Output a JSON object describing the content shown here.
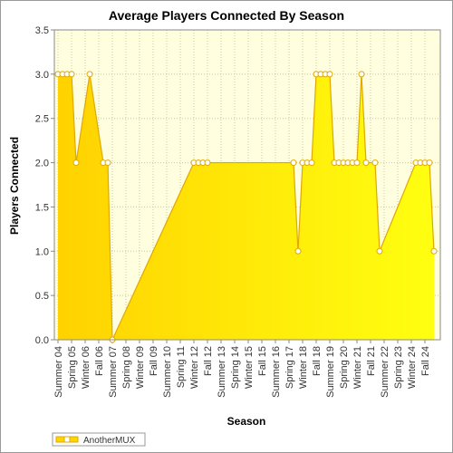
{
  "chart_data": {
    "type": "area",
    "title": "Average Players Connected By Season",
    "x_label": "Season",
    "y_label": "Players Connected",
    "x": [
      0,
      1,
      2,
      3,
      4,
      7,
      10,
      11,
      12,
      30,
      31,
      32,
      33,
      52,
      53,
      54,
      55,
      56,
      57,
      58,
      59,
      60,
      61,
      62,
      63,
      64,
      65,
      66,
      67,
      68,
      70,
      71,
      79,
      80,
      81,
      82,
      83
    ],
    "series": [
      {
        "name": "AnotherMUX",
        "color": "#ffd700",
        "line_color": "#e0a800",
        "values": [
          3,
          3,
          3,
          3,
          2,
          3,
          2,
          2,
          0,
          2,
          2,
          2,
          2,
          2,
          1,
          2,
          2,
          2,
          3,
          3,
          3,
          3,
          2,
          2,
          2,
          2,
          2,
          2,
          3,
          2,
          2,
          1,
          2,
          2,
          2,
          2,
          1
        ]
      }
    ],
    "xlim": [
      -0.8,
      84.4
    ],
    "xticks": [
      {
        "value": 0,
        "label": "Summer 04"
      },
      {
        "value": 3,
        "label": "Spring 05"
      },
      {
        "value": 6,
        "label": "Winter 06"
      },
      {
        "value": 9,
        "label": "Fall 06"
      },
      {
        "value": 12,
        "label": "Summer 07"
      },
      {
        "value": 15,
        "label": "Spring 08"
      },
      {
        "value": 18,
        "label": "Winter 09"
      },
      {
        "value": 21,
        "label": "Fall 09"
      },
      {
        "value": 24,
        "label": "Summer 10"
      },
      {
        "value": 27,
        "label": "Spring 11"
      },
      {
        "value": 30,
        "label": "Winter 12"
      },
      {
        "value": 33,
        "label": "Fall 12"
      },
      {
        "value": 36,
        "label": "Summer 13"
      },
      {
        "value": 39,
        "label": "Spring 14"
      },
      {
        "value": 42,
        "label": "Winter 15"
      },
      {
        "value": 45,
        "label": "Fall 15"
      },
      {
        "value": 48,
        "label": "Summer 16"
      },
      {
        "value": 51,
        "label": "Spring 17"
      },
      {
        "value": 54,
        "label": "Winter 18"
      },
      {
        "value": 57,
        "label": "Fall 18"
      },
      {
        "value": 60,
        "label": "Summer 19"
      },
      {
        "value": 63,
        "label": "Spring 20"
      },
      {
        "value": 66,
        "label": "Winter 21"
      },
      {
        "value": 69,
        "label": "Fall 21"
      },
      {
        "value": 72,
        "label": "Summer 22"
      },
      {
        "value": 75,
        "label": "Spring 23"
      },
      {
        "value": 78,
        "label": "Winter 24"
      },
      {
        "value": 81,
        "label": "Fall 24"
      }
    ],
    "ylim": [
      0,
      3.5
    ],
    "yticks": [
      {
        "value": 0,
        "label": "0.0"
      },
      {
        "value": 0.5,
        "label": "0.5"
      },
      {
        "value": 1,
        "label": "1.0"
      },
      {
        "value": 1.5,
        "label": "1.5"
      },
      {
        "value": 2,
        "label": "2.0"
      },
      {
        "value": 2.5,
        "label": "2.5"
      },
      {
        "value": 3,
        "label": "3.0"
      },
      {
        "value": 3.5,
        "label": "3.5"
      }
    ],
    "grid": true,
    "legend": "bottom-left"
  }
}
